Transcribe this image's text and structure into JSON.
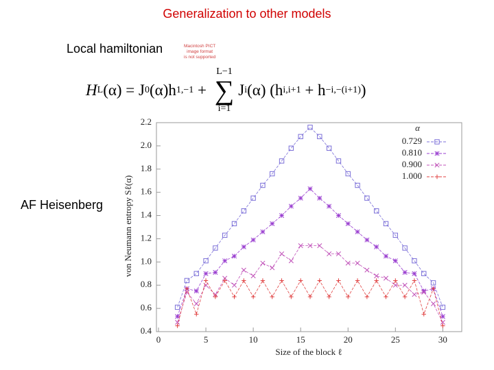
{
  "slide": {
    "title": "Generalization to other models",
    "local_label": "Local hamiltonian",
    "pict_note": [
      "Macintosh PICT",
      "image format",
      "is not supported"
    ],
    "formula": {
      "lhs": "H",
      "lhs_sub": "L",
      "t1": "(α) = J",
      "t1_sub": "0",
      "t2": "(α)h",
      "t2_sub": "1,−1",
      "t3": " + ",
      "sum": "∑",
      "sum_sup": "L−1",
      "sum_sub": "i=1",
      "t4": "J",
      "t4_sub": "i",
      "t5": "(α) (h",
      "t5_sub": "i,i+1",
      "t6": " + h",
      "t6_sub": "−i,−(i+1)",
      "t7": ")"
    },
    "af_label": "AF Heisenberg"
  },
  "chart_data": {
    "type": "line",
    "xlabel": "Size of the block ℓ",
    "ylabel": "von Neumann entropy Sℓ(α)",
    "legend_title": "α",
    "legend": "top-right",
    "xlim": [
      0,
      32
    ],
    "ylim": [
      0.4,
      2.2
    ],
    "xticks": [
      0,
      5,
      10,
      15,
      20,
      25,
      30
    ],
    "yticks": [
      0.4,
      0.6,
      0.8,
      {
        "value": 1,
        "label": "1.0"
      },
      1.2,
      1.4,
      1.6,
      1.8,
      {
        "value": 2,
        "label": "2.0"
      },
      2.2
    ],
    "x": [
      2,
      3,
      4,
      5,
      6,
      7,
      8,
      9,
      10,
      11,
      12,
      13,
      14,
      15,
      16,
      17,
      18,
      19,
      20,
      21,
      22,
      23,
      24,
      25,
      26,
      27,
      28,
      29,
      30
    ],
    "series": [
      {
        "name": "0.729",
        "color": "#7b6fd8",
        "marker": "square",
        "values": [
          0.61,
          0.84,
          0.9,
          1.01,
          1.12,
          1.23,
          1.33,
          1.44,
          1.55,
          1.66,
          1.76,
          1.87,
          1.98,
          2.08,
          2.16,
          2.08,
          1.98,
          1.87,
          1.76,
          1.66,
          1.55,
          1.44,
          1.33,
          1.23,
          1.12,
          1.01,
          0.9,
          0.82,
          0.61
        ]
      },
      {
        "name": "0.810",
        "color": "#9a3fd0",
        "marker": "star",
        "values": [
          0.53,
          0.77,
          0.75,
          0.9,
          0.91,
          1.01,
          1.05,
          1.13,
          1.19,
          1.26,
          1.33,
          1.4,
          1.48,
          1.55,
          1.63,
          1.55,
          1.48,
          1.4,
          1.33,
          1.26,
          1.19,
          1.13,
          1.05,
          1.01,
          0.91,
          0.9,
          0.75,
          0.77,
          0.53
        ]
      },
      {
        "name": "0.900",
        "color": "#c050b8",
        "marker": "cross",
        "values": [
          0.48,
          0.74,
          0.64,
          0.8,
          0.72,
          0.86,
          0.8,
          0.93,
          0.88,
          0.99,
          0.95,
          1.07,
          1.01,
          1.14,
          1.14,
          1.14,
          1.07,
          1.07,
          0.99,
          0.99,
          0.93,
          0.88,
          0.86,
          0.8,
          0.8,
          0.72,
          0.74,
          0.64,
          0.48
        ]
      },
      {
        "name": "1.000",
        "color": "#e04040",
        "marker": "plus",
        "values": [
          0.45,
          0.77,
          0.55,
          0.84,
          0.7,
          0.84,
          0.7,
          0.84,
          0.7,
          0.84,
          0.7,
          0.84,
          0.7,
          0.84,
          0.7,
          0.84,
          0.7,
          0.84,
          0.7,
          0.84,
          0.7,
          0.84,
          0.7,
          0.84,
          0.7,
          0.84,
          0.55,
          0.77,
          0.45
        ]
      }
    ]
  }
}
